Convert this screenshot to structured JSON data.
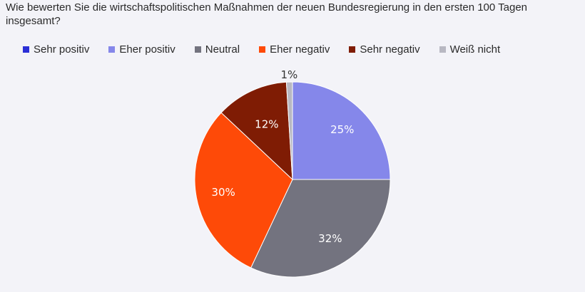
{
  "chart_data": {
    "type": "pie",
    "title": "Wie bewerten Sie die wirtschaftspolitischen Maßnahmen der neuen Bundesregierung in den ersten 100 Tagen insgesamt?",
    "legend_position": "top",
    "slices": [
      {
        "name": "Sehr positiv",
        "value": 0,
        "label": "",
        "color": "#2b2fd6",
        "label_color": "#ffffff"
      },
      {
        "name": "Eher positiv",
        "value": 25,
        "label": "25%",
        "color": "#8587ea",
        "label_color": "#ffffff"
      },
      {
        "name": "Neutral",
        "value": 32,
        "label": "32%",
        "color": "#73737f",
        "label_color": "#ffffff"
      },
      {
        "name": "Eher negativ",
        "value": 30,
        "label": "30%",
        "color": "#fe4a08",
        "label_color": "#ffffff"
      },
      {
        "name": "Sehr negativ",
        "value": 12,
        "label": "12%",
        "color": "#7f1c04",
        "label_color": "#ffffff"
      },
      {
        "name": "Weiß nicht",
        "value": 1,
        "label": "1%",
        "color": "#b8b8c2",
        "label_color": "#333333"
      }
    ]
  }
}
